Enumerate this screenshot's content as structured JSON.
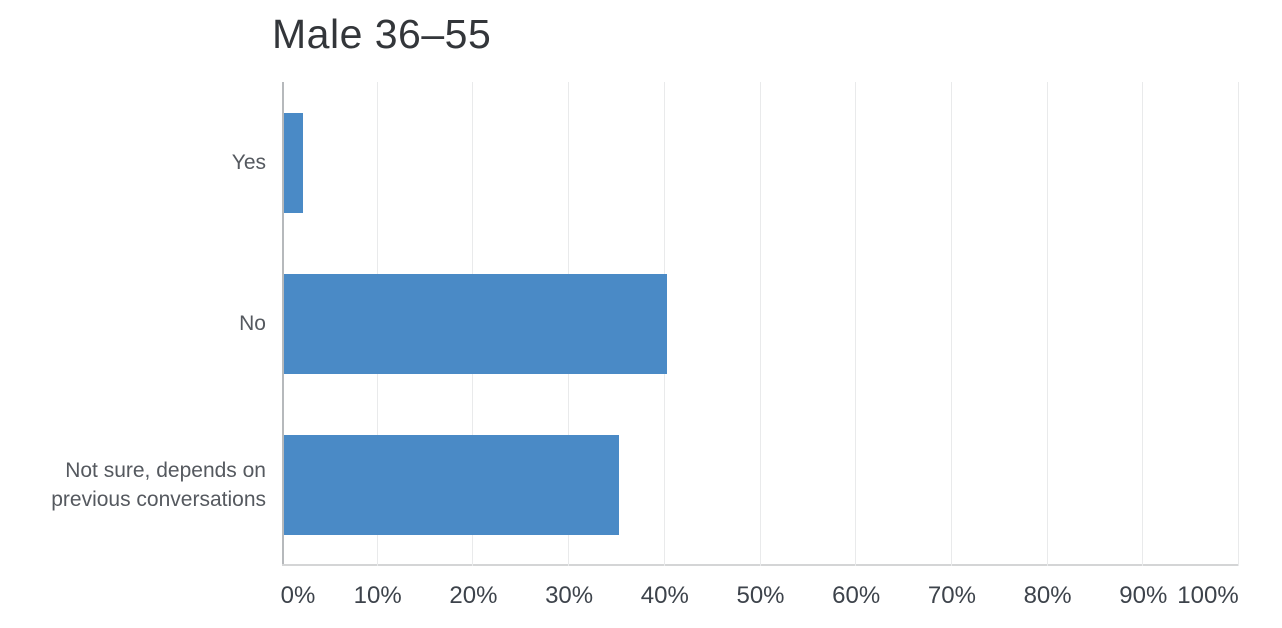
{
  "chart_data": {
    "type": "bar",
    "orientation": "horizontal",
    "title": "Male 36–55",
    "categories": [
      "Yes",
      "No",
      "Not sure, depends on previous conversations"
    ],
    "values": [
      2,
      40,
      35
    ],
    "unit": "%",
    "xlabel": "",
    "ylabel": "",
    "xlim": [
      0,
      100
    ],
    "x_ticks": [
      0,
      10,
      20,
      30,
      40,
      50,
      60,
      70,
      80,
      90,
      100
    ],
    "x_tick_labels": [
      "0%",
      "10%",
      "20%",
      "30%",
      "40%",
      "50%",
      "60%",
      "70%",
      "80%",
      "90%",
      "100%"
    ],
    "grid": true,
    "legend": false
  },
  "colors": {
    "bar": "#4a8ac6",
    "title_text": "#33363a",
    "category_text": "#55595f",
    "tick_text": "#3d434b",
    "gridline": "#e9eaeb",
    "axis_line": "#b6b9bc",
    "baseline": "#d4d5d6",
    "background": "#ffffff"
  }
}
